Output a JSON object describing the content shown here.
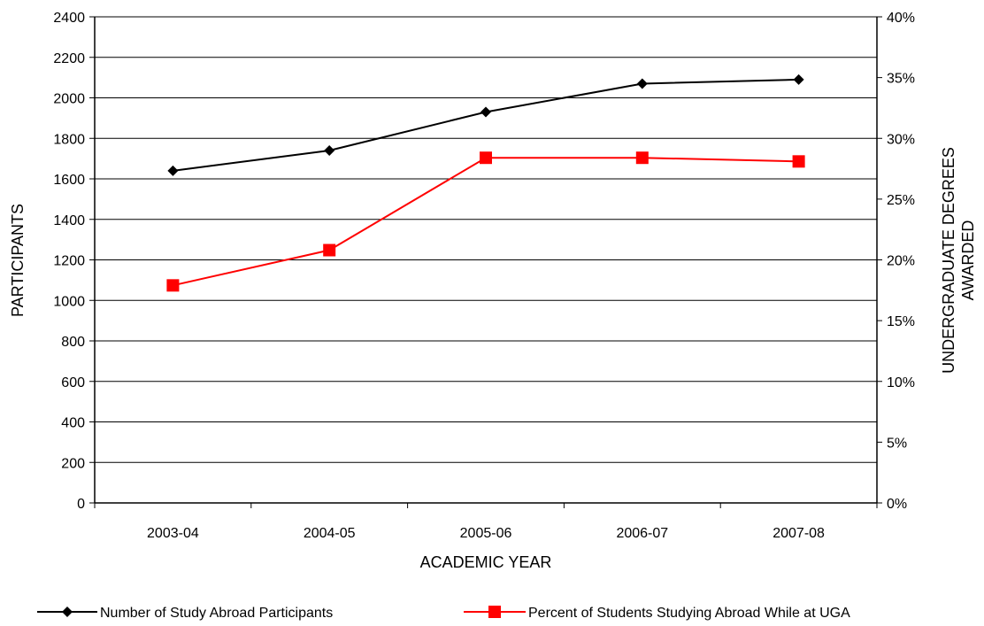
{
  "chart_data": {
    "type": "line",
    "title": "",
    "xlabel": "ACADEMIC YEAR",
    "ylabel": "PARTICIPANTS",
    "y2label_lines": [
      "UNDERGRADUATE DEGREES",
      "AWARDED"
    ],
    "categories": [
      "2003-04",
      "2004-05",
      "2005-06",
      "2006-07",
      "2007-08"
    ],
    "ylim": [
      0,
      2400
    ],
    "y_ticks": [
      "0",
      "200",
      "400",
      "600",
      "800",
      "1000",
      "1200",
      "1400",
      "1600",
      "1800",
      "2000",
      "2200",
      "2400"
    ],
    "y2lim": [
      0,
      40
    ],
    "y2_ticks": [
      "0%",
      "5%",
      "10%",
      "15%",
      "20%",
      "25%",
      "30%",
      "35%",
      "40%"
    ],
    "grid": true,
    "legend_position": "bottom",
    "series": [
      {
        "name": "Number of Study Abroad Participants",
        "axis": "left",
        "color": "#000000",
        "marker": "diamond",
        "values": [
          1640,
          1740,
          1930,
          2070,
          2090
        ]
      },
      {
        "name": "Percent of Students Studying Abroad While at UGA",
        "axis": "right",
        "color": "#ff0000",
        "marker": "square",
        "values": [
          17.9,
          20.8,
          28.4,
          28.4,
          28.1
        ]
      }
    ]
  }
}
